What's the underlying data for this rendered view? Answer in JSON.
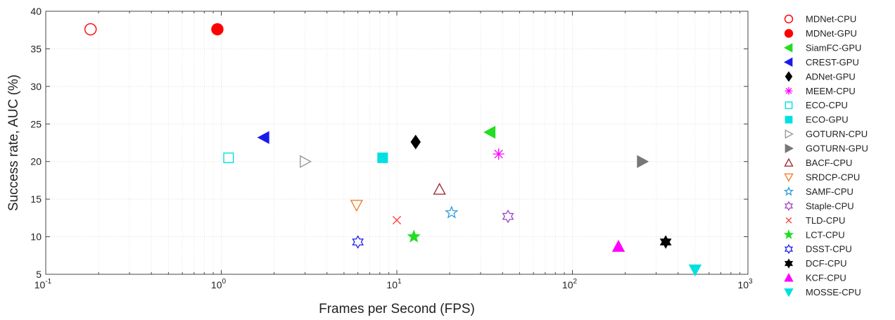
{
  "chart_data": {
    "type": "scatter",
    "title": "",
    "xlabel": "Frames per Second (FPS)",
    "ylabel": "Success rate, AUC (%)",
    "xscale": "log",
    "xlim": [
      0.1,
      1000
    ],
    "ylim": [
      5,
      40
    ],
    "grid": true,
    "legend_position": "right",
    "x_ticks": [
      {
        "value": 0.1,
        "base": "10",
        "exp": "-1"
      },
      {
        "value": 1,
        "base": "10",
        "exp": "0"
      },
      {
        "value": 10,
        "base": "10",
        "exp": "1"
      },
      {
        "value": 100,
        "base": "10",
        "exp": "2"
      },
      {
        "value": 1000,
        "base": "10",
        "exp": "3"
      }
    ],
    "y_ticks": [
      "5",
      "10",
      "15",
      "20",
      "25",
      "30",
      "35",
      "40"
    ],
    "series": [
      {
        "name": "MDNet-CPU",
        "x": 0.18,
        "y": 37.6,
        "marker": "circle",
        "filled": false,
        "color": "#ff0000"
      },
      {
        "name": "MDNet-GPU",
        "x": 0.95,
        "y": 37.6,
        "marker": "circle",
        "filled": true,
        "color": "#ff0000"
      },
      {
        "name": "SiamFC-GPU",
        "x": 34,
        "y": 23.9,
        "marker": "triangle-left",
        "filled": true,
        "color": "#22dd22"
      },
      {
        "name": "CREST-GPU",
        "x": 1.75,
        "y": 23.2,
        "marker": "triangle-left",
        "filled": true,
        "color": "#1a1aee"
      },
      {
        "name": "ADNet-GPU",
        "x": 12.8,
        "y": 22.6,
        "marker": "diamond",
        "filled": true,
        "color": "#000000"
      },
      {
        "name": "MEEM-CPU",
        "x": 38,
        "y": 21.0,
        "marker": "asterisk",
        "filled": false,
        "color": "#ff00ff"
      },
      {
        "name": "ECO-CPU",
        "x": 1.1,
        "y": 20.5,
        "marker": "square",
        "filled": false,
        "color": "#00e0e0"
      },
      {
        "name": "ECO-GPU",
        "x": 8.3,
        "y": 20.5,
        "marker": "square",
        "filled": true,
        "color": "#00e0e0"
      },
      {
        "name": "GOTURN-CPU",
        "x": 3.0,
        "y": 20.0,
        "marker": "triangle-right",
        "filled": false,
        "color": "#999999"
      },
      {
        "name": "GOTURN-GPU",
        "x": 250,
        "y": 20.0,
        "marker": "triangle-right",
        "filled": true,
        "color": "#777777"
      },
      {
        "name": "BACF-CPU",
        "x": 17.5,
        "y": 16.3,
        "marker": "triangle-up",
        "filled": false,
        "color": "#a0303a"
      },
      {
        "name": "SRDCP-CPU",
        "x": 5.9,
        "y": 14.2,
        "marker": "triangle-down",
        "filled": false,
        "color": "#f08030"
      },
      {
        "name": "SAMF-CPU",
        "x": 20.5,
        "y": 13.2,
        "marker": "pentagram",
        "filled": false,
        "color": "#2b9be0"
      },
      {
        "name": "Staple-CPU",
        "x": 43,
        "y": 12.7,
        "marker": "hexagram",
        "filled": false,
        "color": "#a040c0"
      },
      {
        "name": "TLD-CPU",
        "x": 10,
        "y": 12.2,
        "marker": "x",
        "filled": false,
        "color": "#ff3030"
      },
      {
        "name": "LCT-CPU",
        "x": 12.5,
        "y": 10.0,
        "marker": "pentagram",
        "filled": true,
        "color": "#22dd22"
      },
      {
        "name": "DSST-CPU",
        "x": 6.0,
        "y": 9.3,
        "marker": "hexagram",
        "filled": false,
        "color": "#1a1aee"
      },
      {
        "name": "DCF-CPU",
        "x": 340,
        "y": 9.3,
        "marker": "hexagram",
        "filled": true,
        "color": "#000000"
      },
      {
        "name": "KCF-CPU",
        "x": 183,
        "y": 8.7,
        "marker": "triangle-up",
        "filled": true,
        "color": "#ff00ff"
      },
      {
        "name": "MOSSE-CPU",
        "x": 500,
        "y": 5.6,
        "marker": "triangle-down",
        "filled": true,
        "color": "#00e0e0"
      }
    ]
  }
}
